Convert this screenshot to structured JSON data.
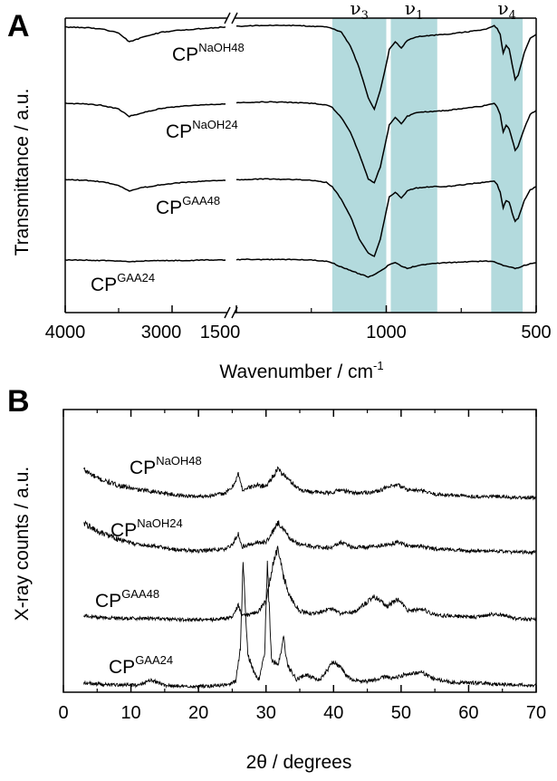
{
  "chart_data": [
    {
      "panel": "A",
      "type": "line",
      "xlabel_main": "Wavenumber / cm",
      "xlabel_exp": "-1",
      "ylabel": "Transmittance / a.u.",
      "x_ticks": [
        4000,
        3000,
        1500,
        1000,
        500
      ],
      "x_segments": [
        [
          4000,
          2500
        ],
        [
          1500,
          500
        ]
      ],
      "bands": [
        {
          "label_base": "ν",
          "label_sub": "3",
          "range": [
            1180,
            1000
          ]
        },
        {
          "label_base": "ν",
          "label_sub": "1",
          "range": [
            985,
            830
          ]
        },
        {
          "label_base": "ν",
          "label_sub": "4",
          "range": [
            650,
            545
          ]
        }
      ],
      "series": [
        {
          "base": "CP",
          "sup": "NaOH48",
          "x": [
            4000,
            3800,
            3650,
            3500,
            3400,
            3300,
            3100,
            2900,
            2700,
            2500,
            1500,
            1400,
            1300,
            1250,
            1200,
            1180,
            1150,
            1120,
            1090,
            1060,
            1040,
            1020,
            1000,
            990,
            970,
            950,
            930,
            900,
            870,
            840,
            800,
            760,
            720,
            700,
            680,
            660,
            640,
            630,
            620,
            610,
            600,
            590,
            580,
            570,
            560,
            540,
            520,
            500
          ],
          "y": [
            10,
            9,
            7,
            2,
            -10,
            -5,
            3,
            6,
            8,
            10,
            11,
            12,
            12,
            11,
            10,
            8,
            3,
            -15,
            -45,
            -85,
            -100,
            -75,
            -40,
            -20,
            -10,
            -18,
            -8,
            -3,
            -2,
            -1,
            0,
            2,
            4,
            5,
            6,
            8,
            12,
            8,
            0,
            -25,
            -15,
            -20,
            -40,
            -60,
            -55,
            -25,
            -5,
            0
          ]
        },
        {
          "base": "CP",
          "sup": "NaOH24",
          "x": [
            4000,
            3800,
            3650,
            3500,
            3400,
            3300,
            3100,
            2900,
            2700,
            2500,
            1500,
            1400,
            1300,
            1250,
            1200,
            1180,
            1150,
            1120,
            1090,
            1060,
            1040,
            1020,
            1000,
            990,
            970,
            950,
            930,
            900,
            870,
            840,
            800,
            760,
            720,
            700,
            680,
            660,
            640,
            630,
            620,
            610,
            600,
            590,
            580,
            570,
            560,
            540,
            520,
            500
          ],
          "y": [
            10,
            9,
            7,
            2,
            -8,
            -4,
            3,
            6,
            8,
            9,
            11,
            12,
            11,
            10,
            8,
            4,
            -10,
            -30,
            -60,
            -95,
            -100,
            -78,
            -40,
            -20,
            -10,
            -18,
            -8,
            -3,
            -2,
            -1,
            0,
            2,
            4,
            5,
            6,
            8,
            10,
            5,
            -5,
            -30,
            -20,
            -25,
            -40,
            -55,
            -50,
            -25,
            -5,
            0
          ]
        },
        {
          "base": "CP",
          "sup": "GAA48",
          "x": [
            4000,
            3800,
            3650,
            3500,
            3400,
            3300,
            3100,
            2900,
            2700,
            2500,
            1500,
            1400,
            1300,
            1250,
            1200,
            1180,
            1150,
            1120,
            1090,
            1060,
            1040,
            1020,
            1000,
            990,
            970,
            950,
            930,
            900,
            870,
            840,
            800,
            760,
            720,
            700,
            680,
            660,
            640,
            630,
            620,
            610,
            600,
            590,
            580,
            570,
            560,
            540,
            520,
            500
          ],
          "y": [
            10,
            9,
            7,
            2,
            -6,
            -2,
            3,
            6,
            8,
            9,
            10,
            11,
            10,
            9,
            6,
            0,
            -18,
            -42,
            -75,
            -95,
            -100,
            -75,
            -35,
            -15,
            -8,
            -16,
            -6,
            -2,
            -1,
            0,
            0,
            2,
            4,
            5,
            6,
            7,
            8,
            3,
            -8,
            -30,
            -20,
            -22,
            -38,
            -50,
            -45,
            -20,
            -5,
            0
          ]
        },
        {
          "base": "CP",
          "sup": "GAA24",
          "x": [
            4000,
            3800,
            3650,
            3500,
            3400,
            3300,
            3100,
            2900,
            2700,
            2500,
            1500,
            1400,
            1300,
            1250,
            1200,
            1180,
            1150,
            1120,
            1090,
            1060,
            1040,
            1020,
            1000,
            990,
            970,
            950,
            930,
            900,
            870,
            840,
            800,
            760,
            720,
            700,
            680,
            660,
            640,
            630,
            620,
            610,
            600,
            590,
            580,
            570,
            560,
            540,
            520,
            500
          ],
          "y": [
            5,
            5,
            4,
            3,
            2,
            3,
            4,
            4,
            5,
            5,
            6,
            6,
            6,
            5,
            3,
            0,
            -8,
            -14,
            -20,
            -26,
            -22,
            -15,
            -8,
            -3,
            0,
            -6,
            -10,
            -6,
            -3,
            -1,
            0,
            1,
            2,
            2,
            3,
            3,
            2,
            0,
            -2,
            -5,
            -6,
            -7,
            -9,
            -10,
            -9,
            -5,
            -2,
            0
          ]
        }
      ]
    },
    {
      "panel": "B",
      "type": "line",
      "xlabel": "2θ / degrees",
      "ylabel": "X-ray counts / a.u.",
      "xlim": [
        0,
        70
      ],
      "x_ticks": [
        0,
        10,
        20,
        30,
        40,
        50,
        60,
        70
      ],
      "series": [
        {
          "base": "CP",
          "sup": "NaOH48",
          "x": [
            3,
            5,
            8,
            11,
            14,
            17,
            20,
            22,
            24,
            25,
            25.9,
            26.5,
            27.5,
            28.8,
            30,
            31,
            31.8,
            32.5,
            33.5,
            35,
            37,
            39.5,
            41,
            43,
            46,
            48,
            49.5,
            51,
            53,
            55,
            58,
            61,
            64,
            67,
            70
          ],
          "y": [
            28,
            20,
            14,
            10,
            8,
            5,
            4,
            5,
            7,
            12,
            24,
            10,
            12,
            14,
            13,
            22,
            28,
            24,
            18,
            10,
            8,
            7,
            10,
            7,
            8,
            12,
            14,
            10,
            9,
            6,
            5,
            4,
            4,
            3,
            3
          ]
        },
        {
          "base": "CP",
          "sup": "NaOH24",
          "x": [
            3,
            5,
            8,
            11,
            14,
            17,
            20,
            22,
            24,
            25,
            25.9,
            26.5,
            27.5,
            28.8,
            30,
            31,
            31.8,
            32.5,
            33.5,
            35,
            37,
            39.5,
            41,
            43,
            46,
            48,
            49.5,
            51,
            53,
            55,
            58,
            61,
            64,
            67,
            70
          ],
          "y": [
            30,
            22,
            15,
            10,
            8,
            5,
            4,
            5,
            6,
            10,
            20,
            8,
            10,
            12,
            12,
            22,
            30,
            24,
            16,
            10,
            8,
            7,
            12,
            7,
            8,
            10,
            12,
            9,
            8,
            6,
            5,
            4,
            4,
            3,
            3
          ]
        },
        {
          "base": "CP",
          "sup": "GAA48",
          "x": [
            3,
            5,
            8,
            11,
            14,
            17,
            20,
            22,
            24,
            25,
            25.9,
            26.5,
            27.5,
            28.8,
            30,
            31,
            31.8,
            32.5,
            33.5,
            35,
            37,
            39.5,
            41,
            43,
            46,
            48,
            49.5,
            51,
            53,
            55,
            58,
            61,
            64,
            67,
            70
          ],
          "y": [
            6,
            5,
            4,
            4,
            4,
            3,
            3,
            3,
            4,
            5,
            15,
            6,
            7,
            10,
            18,
            48,
            62,
            40,
            22,
            10,
            8,
            12,
            8,
            9,
            22,
            14,
            20,
            10,
            12,
            7,
            6,
            5,
            8,
            4,
            3
          ]
        },
        {
          "base": "CP",
          "sup": "GAA24",
          "x": [
            3,
            5,
            8,
            11,
            13,
            15,
            18,
            21,
            24,
            25.5,
            26.2,
            26.6,
            27.3,
            28.2,
            29,
            29.8,
            30.2,
            30.8,
            31.8,
            32.6,
            33.2,
            34.5,
            36,
            38,
            40,
            41,
            42.5,
            45,
            47.5,
            49,
            50.5,
            53,
            55,
            58,
            61,
            64,
            67,
            70
          ],
          "y": [
            5,
            4,
            3,
            3,
            8,
            3,
            2,
            2,
            3,
            6,
            35,
            110,
            30,
            14,
            8,
            30,
            108,
            25,
            20,
            44,
            20,
            8,
            12,
            7,
            24,
            18,
            8,
            6,
            10,
            9,
            12,
            14,
            8,
            5,
            5,
            4,
            3,
            3
          ]
        }
      ]
    }
  ]
}
